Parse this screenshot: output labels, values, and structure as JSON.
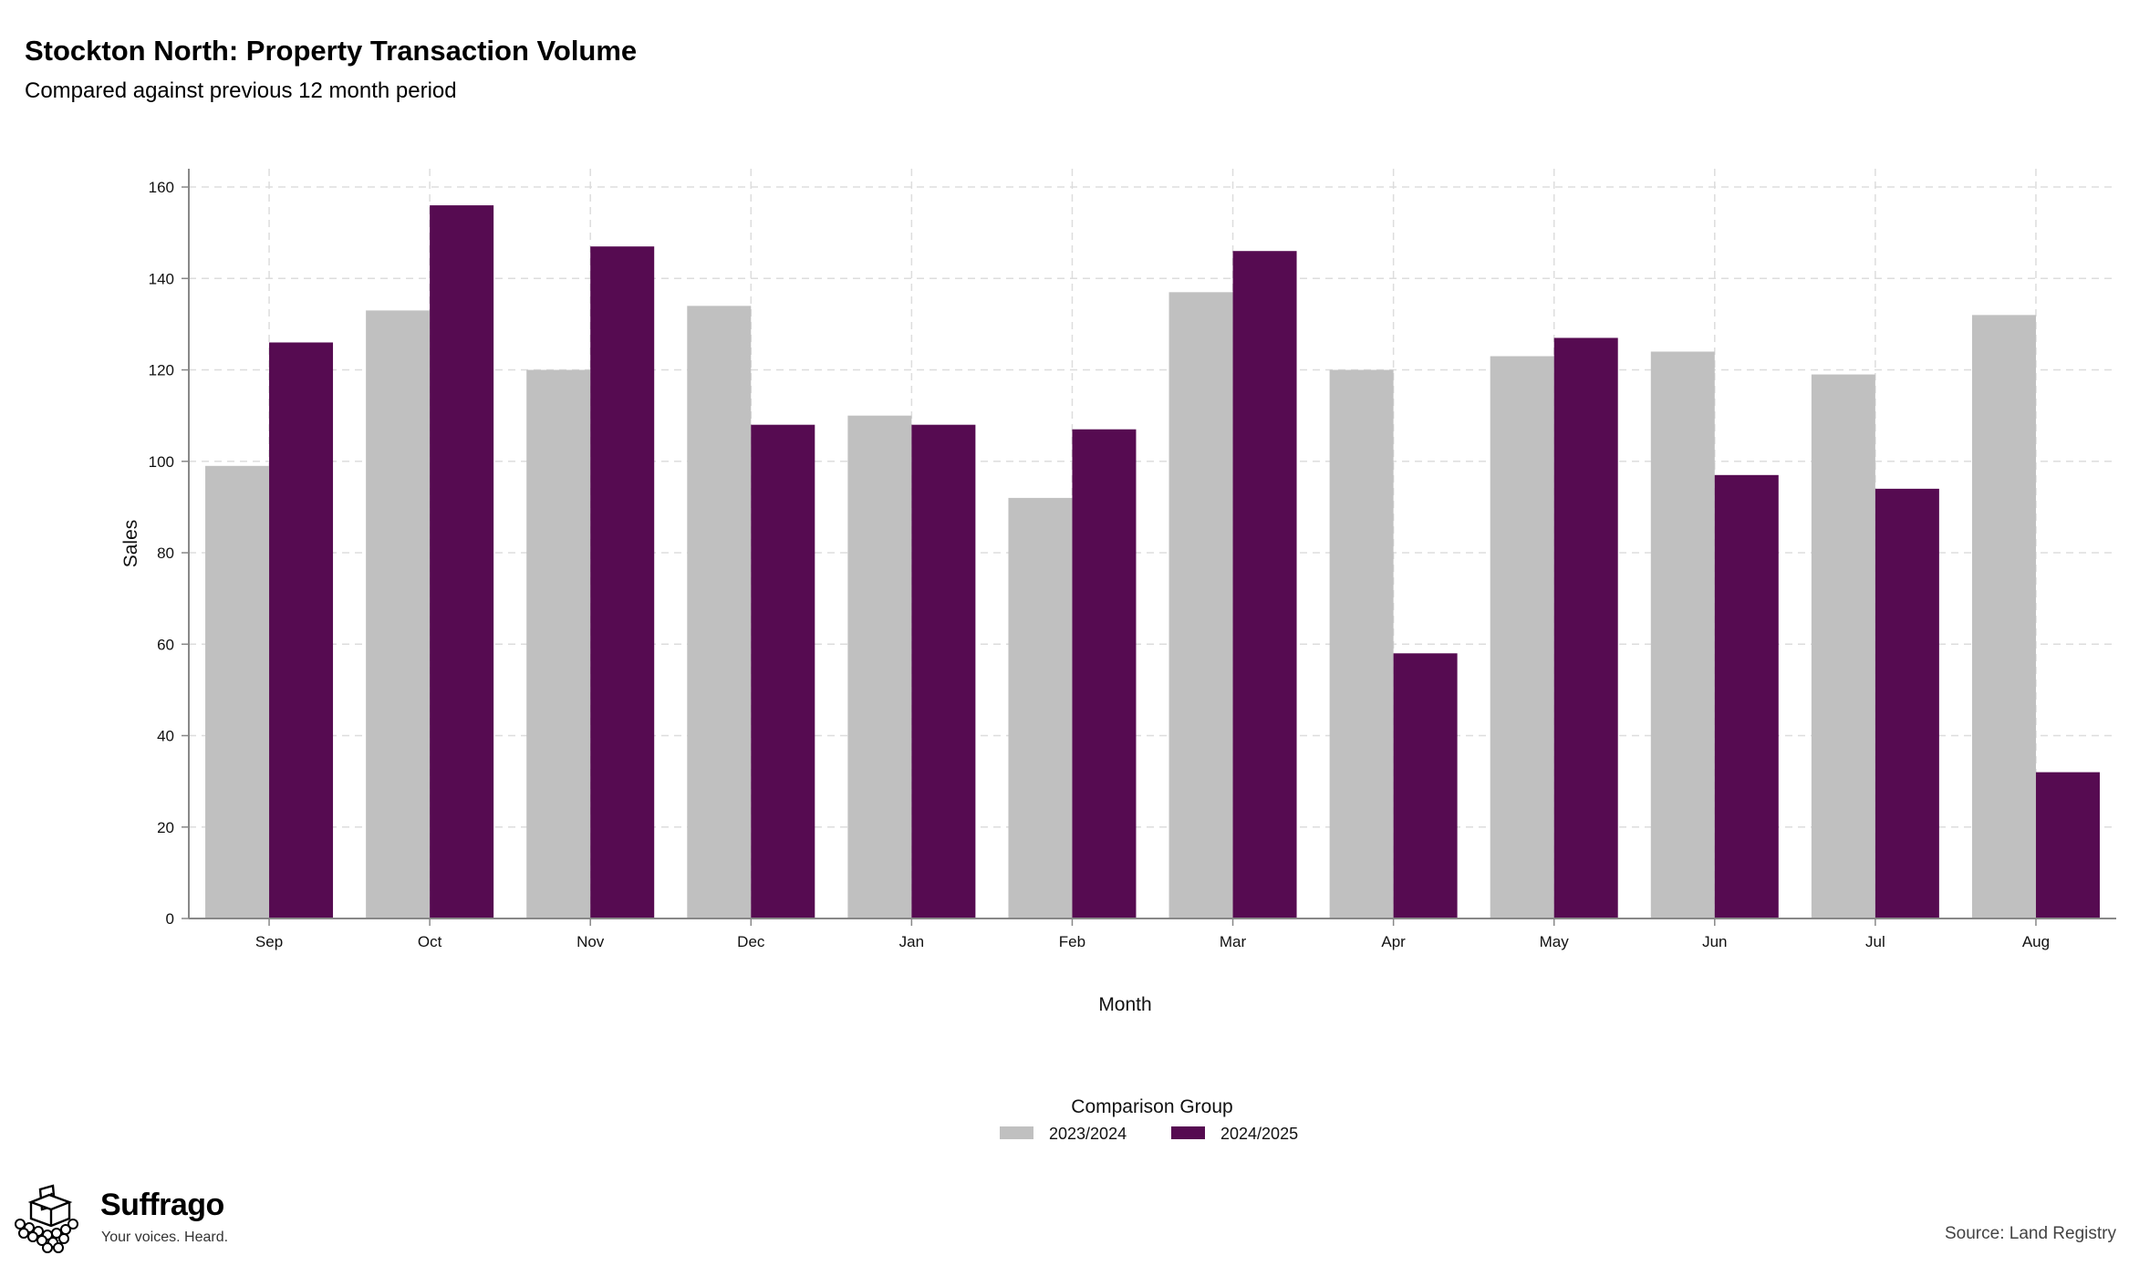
{
  "header": {
    "title": "Stockton North: Property Transaction Volume",
    "subtitle": "Compared against previous 12 month period"
  },
  "footer": {
    "brand_name": "Suffrago",
    "brand_tagline": "Your voices. Heard.",
    "source": "Source: Land Registry"
  },
  "colors": {
    "prev": "#c0c0c0",
    "curr": "#560b51",
    "grid": "#dddddd",
    "axis": "#888888"
  },
  "chart_data": {
    "type": "bar",
    "title": "Stockton North: Property Transaction Volume",
    "subtitle": "Compared against previous 12 month period",
    "xlabel": "Month",
    "ylabel": "Sales",
    "categories": [
      "Sep",
      "Oct",
      "Nov",
      "Dec",
      "Jan",
      "Feb",
      "Mar",
      "Apr",
      "May",
      "Jun",
      "Jul",
      "Aug"
    ],
    "series": [
      {
        "name": "2023/2024",
        "values": [
          99,
          133,
          120,
          134,
          110,
          92,
          137,
          120,
          123,
          124,
          119,
          132
        ]
      },
      {
        "name": "2024/2025",
        "values": [
          126,
          156,
          147,
          108,
          108,
          107,
          146,
          58,
          127,
          97,
          94,
          32
        ]
      }
    ],
    "ylim": [
      0,
      164
    ],
    "yticks": [
      0,
      20,
      40,
      60,
      80,
      100,
      120,
      140,
      160
    ],
    "grid": true,
    "legend_title": "Comparison Group",
    "legend_position": "bottom-center"
  }
}
